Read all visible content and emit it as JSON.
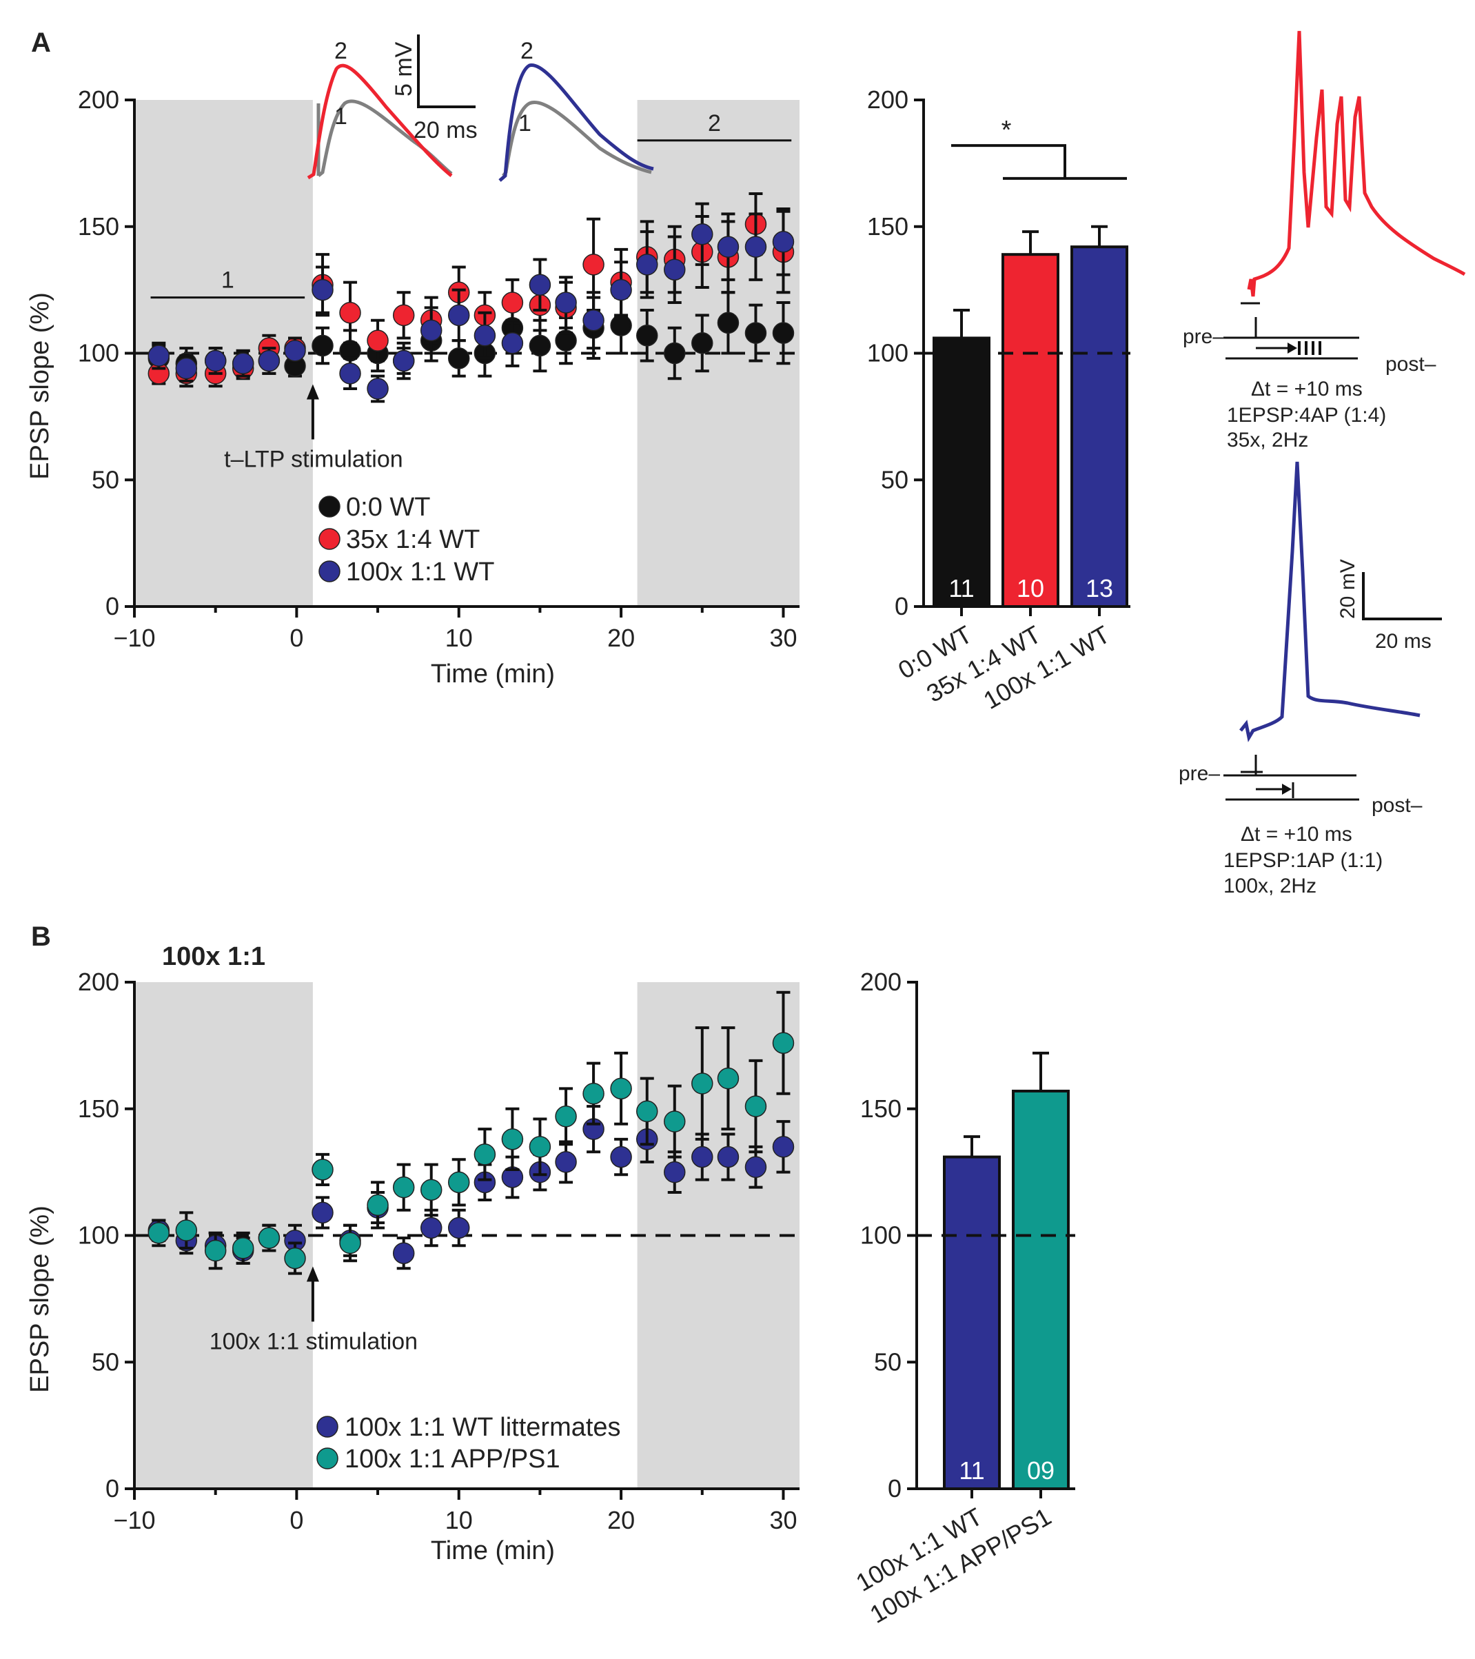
{
  "panel_labels": {
    "a": "A",
    "b": "B"
  },
  "colors": {
    "black": "#111111",
    "red": "#ee2430",
    "blue": "#2e3192",
    "teal": "#0f9a8e",
    "gray_trace": "#808080",
    "shade": "#d9d9d9"
  },
  "trace_labels": {
    "one": "1",
    "two": "2"
  },
  "chart_data": [
    {
      "id": "A_time",
      "type": "scatter",
      "xlabel": "Time (min)",
      "ylabel": "EPSP slope (%)",
      "xlim": [
        -10,
        31
      ],
      "ylim": [
        0,
        200
      ],
      "xticks": [
        -10,
        0,
        10,
        20,
        30
      ],
      "yticks": [
        0,
        50,
        100,
        150,
        200
      ],
      "shaded": [
        [
          -10,
          1
        ],
        [
          21,
          31
        ]
      ],
      "baseline": 100,
      "period_labels": [
        {
          "label": "1",
          "x0": -9,
          "x1": 0.5,
          "y": 122
        },
        {
          "label": "2",
          "x0": 21,
          "x1": 30.5,
          "y": 184
        }
      ],
      "arrow_label": "t–LTP stimulation",
      "arrow_x": 1,
      "series": [
        {
          "name": "0:0 WT",
          "color_key": "black",
          "x": [
            -8.5,
            -6.8,
            -5.0,
            -3.3,
            -1.7,
            -0.1,
            1.6,
            3.3,
            5.0,
            6.6,
            8.3,
            10.0,
            11.6,
            13.3,
            15.0,
            16.6,
            18.3,
            20.0,
            21.6,
            23.3,
            25.0,
            26.6,
            28.3,
            30.0
          ],
          "y": [
            98,
            96,
            97,
            96,
            97,
            95,
            103,
            101,
            100,
            97,
            105,
            98,
            100,
            110,
            103,
            105,
            110,
            111,
            107,
            100,
            104,
            112,
            108,
            108
          ],
          "err": [
            5,
            6,
            5,
            5,
            5,
            4,
            7,
            8,
            7,
            7,
            8,
            7,
            9,
            10,
            10,
            9,
            12,
            11,
            10,
            10,
            11,
            12,
            11,
            12
          ]
        },
        {
          "name": "35x 1:4 WT",
          "color_key": "red",
          "x": [
            -8.5,
            -6.8,
            -5.0,
            -3.3,
            -1.7,
            -0.1,
            1.6,
            3.3,
            5.0,
            6.6,
            8.3,
            10.0,
            11.6,
            13.3,
            15.0,
            16.6,
            18.3,
            20.0,
            21.6,
            23.3,
            25.0,
            26.6,
            28.3,
            30.0
          ],
          "y": [
            92,
            92,
            92,
            94,
            102,
            102,
            127,
            116,
            105,
            115,
            113,
            124,
            115,
            120,
            119,
            118,
            135,
            128,
            138,
            137,
            140,
            138,
            151,
            140
          ],
          "err": [
            4,
            5,
            5,
            4,
            5,
            4,
            12,
            12,
            8,
            9,
            9,
            10,
            9,
            9,
            10,
            10,
            18,
            13,
            14,
            13,
            14,
            14,
            12,
            16
          ]
        },
        {
          "name": "100x 1:1 WT",
          "color_key": "blue",
          "x": [
            -8.5,
            -6.8,
            -5.0,
            -3.3,
            -1.7,
            -0.1,
            1.6,
            3.3,
            5.0,
            6.6,
            8.3,
            10.0,
            11.6,
            13.3,
            15.0,
            16.6,
            18.3,
            20.0,
            21.6,
            23.3,
            25.0,
            26.6,
            28.3,
            30.0
          ],
          "y": [
            99,
            94,
            97,
            96,
            97,
            101,
            125,
            92,
            86,
            97,
            109,
            115,
            107,
            104,
            127,
            120,
            113,
            125,
            135,
            133,
            147,
            142,
            142,
            144
          ],
          "err": [
            5,
            5,
            5,
            5,
            5,
            5,
            9,
            6,
            5,
            5,
            9,
            10,
            9,
            9,
            10,
            10,
            11,
            11,
            13,
            13,
            12,
            13,
            13,
            13
          ]
        }
      ],
      "legend": [
        "0:0 WT",
        "35x 1:4 WT",
        "100x 1:1 WT"
      ]
    },
    {
      "id": "A_bar",
      "type": "bar",
      "categories": [
        "0:0 WT",
        "35x 1:4 WT",
        "100x 1:1 WT"
      ],
      "values": [
        106,
        139,
        142
      ],
      "err": [
        11,
        9,
        8
      ],
      "n": [
        "11",
        "10",
        "13"
      ],
      "color_keys": [
        "black",
        "red",
        "blue"
      ],
      "ylim": [
        0,
        200
      ],
      "yticks": [
        0,
        50,
        100,
        150,
        200
      ],
      "baseline": 100,
      "significance": "*"
    },
    {
      "id": "B_time",
      "type": "scatter",
      "title": "100x 1:1",
      "xlabel": "Time (min)",
      "ylabel": "EPSP slope (%)",
      "xlim": [
        -10,
        31
      ],
      "ylim": [
        0,
        200
      ],
      "xticks": [
        -10,
        0,
        10,
        20,
        30
      ],
      "yticks": [
        0,
        50,
        100,
        150,
        200
      ],
      "shaded": [
        [
          -10,
          1
        ],
        [
          21,
          31
        ]
      ],
      "baseline": 100,
      "arrow_label": "100x 1:1 stimulation",
      "arrow_x": 1,
      "series": [
        {
          "name": "100x 1:1 WT littermates",
          "color_key": "blue",
          "x": [
            -8.5,
            -6.8,
            -5.0,
            -3.3,
            -1.7,
            -0.1,
            1.6,
            3.3,
            5.0,
            6.6,
            8.3,
            10.0,
            11.6,
            13.3,
            15.0,
            16.6,
            18.3,
            20.0,
            21.6,
            23.3,
            25.0,
            26.6,
            28.3,
            30.0
          ],
          "y": [
            102,
            98,
            96,
            94,
            99,
            98,
            109,
            98,
            111,
            93,
            103,
            103,
            121,
            123,
            125,
            129,
            142,
            131,
            138,
            125,
            131,
            131,
            127,
            135
          ],
          "err": [
            4,
            5,
            5,
            5,
            5,
            6,
            6,
            6,
            6,
            6,
            7,
            7,
            7,
            8,
            7,
            8,
            9,
            7,
            9,
            8,
            9,
            9,
            8,
            10
          ]
        },
        {
          "name": "100x 1:1 APP/PS1",
          "color_key": "teal",
          "x": [
            -8.5,
            -6.8,
            -5.0,
            -3.3,
            -1.7,
            -0.1,
            1.6,
            3.3,
            5.0,
            6.6,
            8.3,
            10.0,
            11.6,
            13.3,
            15.0,
            16.6,
            18.3,
            20.0,
            21.6,
            23.3,
            25.0,
            26.6,
            28.3,
            30.0
          ],
          "y": [
            101,
            102,
            94,
            95,
            99,
            91,
            126,
            97,
            112,
            119,
            118,
            121,
            132,
            138,
            135,
            147,
            156,
            158,
            149,
            145,
            160,
            162,
            151,
            176
          ],
          "err": [
            5,
            7,
            7,
            6,
            5,
            6,
            6,
            7,
            9,
            9,
            10,
            9,
            10,
            12,
            11,
            11,
            12,
            14,
            13,
            14,
            22,
            20,
            18,
            20
          ]
        }
      ],
      "legend": [
        "100x 1:1 WT littermates",
        "100x 1:1 APP/PS1"
      ]
    },
    {
      "id": "B_bar",
      "type": "bar",
      "categories": [
        "100x 1:1 WT",
        "100x 1:1 APP/PS1"
      ],
      "values": [
        131,
        157
      ],
      "err": [
        8,
        15
      ],
      "n": [
        "11",
        "09"
      ],
      "color_keys": [
        "blue",
        "teal"
      ],
      "ylim": [
        0,
        200
      ],
      "yticks": [
        0,
        50,
        100,
        150,
        200
      ],
      "baseline": 100
    }
  ],
  "traces_annot": {
    "epsp_scale_v": "5 mV",
    "epsp_scale_t": "20 ms",
    "ap_scale_v": "20 mV",
    "ap_scale_t": "20 ms",
    "protocol_1": {
      "pre": "pre–",
      "post": "post–",
      "dt": "Δt = +10 ms",
      "line1": "1EPSP:4AP (1:4)",
      "line2": "35x, 2Hz"
    },
    "protocol_2": {
      "pre": "pre–",
      "post": "post–",
      "dt": "Δt = +10 ms",
      "line1": "1EPSP:1AP (1:1)",
      "line2": "100x, 2Hz"
    }
  }
}
